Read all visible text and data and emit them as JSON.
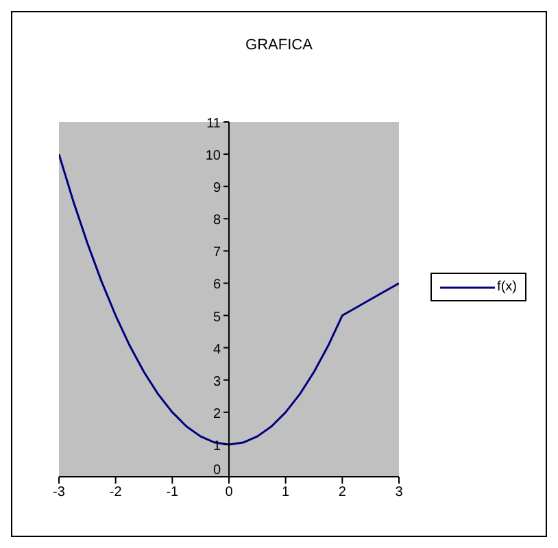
{
  "chart_data": {
    "type": "line",
    "title": "GRAFICA",
    "x": [
      -3,
      -2.75,
      -2.5,
      -2.25,
      -2,
      -1.75,
      -1.5,
      -1.25,
      -1,
      -0.75,
      -0.5,
      -0.25,
      0,
      0.25,
      0.5,
      0.75,
      1,
      1.25,
      1.5,
      1.75,
      2,
      2.5,
      3
    ],
    "series": [
      {
        "name": "f(x)",
        "color": "#000080",
        "values": [
          10,
          8.56,
          7.25,
          6.06,
          5,
          4.06,
          3.25,
          2.56,
          2,
          1.56,
          1.25,
          1.06,
          1,
          1.06,
          1.25,
          1.56,
          2,
          2.56,
          3.25,
          4.06,
          5,
          5.5,
          6
        ]
      }
    ],
    "xlim": [
      -3,
      3
    ],
    "xticks": [
      -3,
      -2,
      -1,
      0,
      1,
      2,
      3
    ],
    "ylim": [
      0,
      11
    ],
    "yticks": [
      0,
      1,
      2,
      3,
      4,
      5,
      6,
      7,
      8,
      9,
      10,
      11
    ],
    "grid": false,
    "legend": "right",
    "marker": "none",
    "line_style": "solid"
  }
}
